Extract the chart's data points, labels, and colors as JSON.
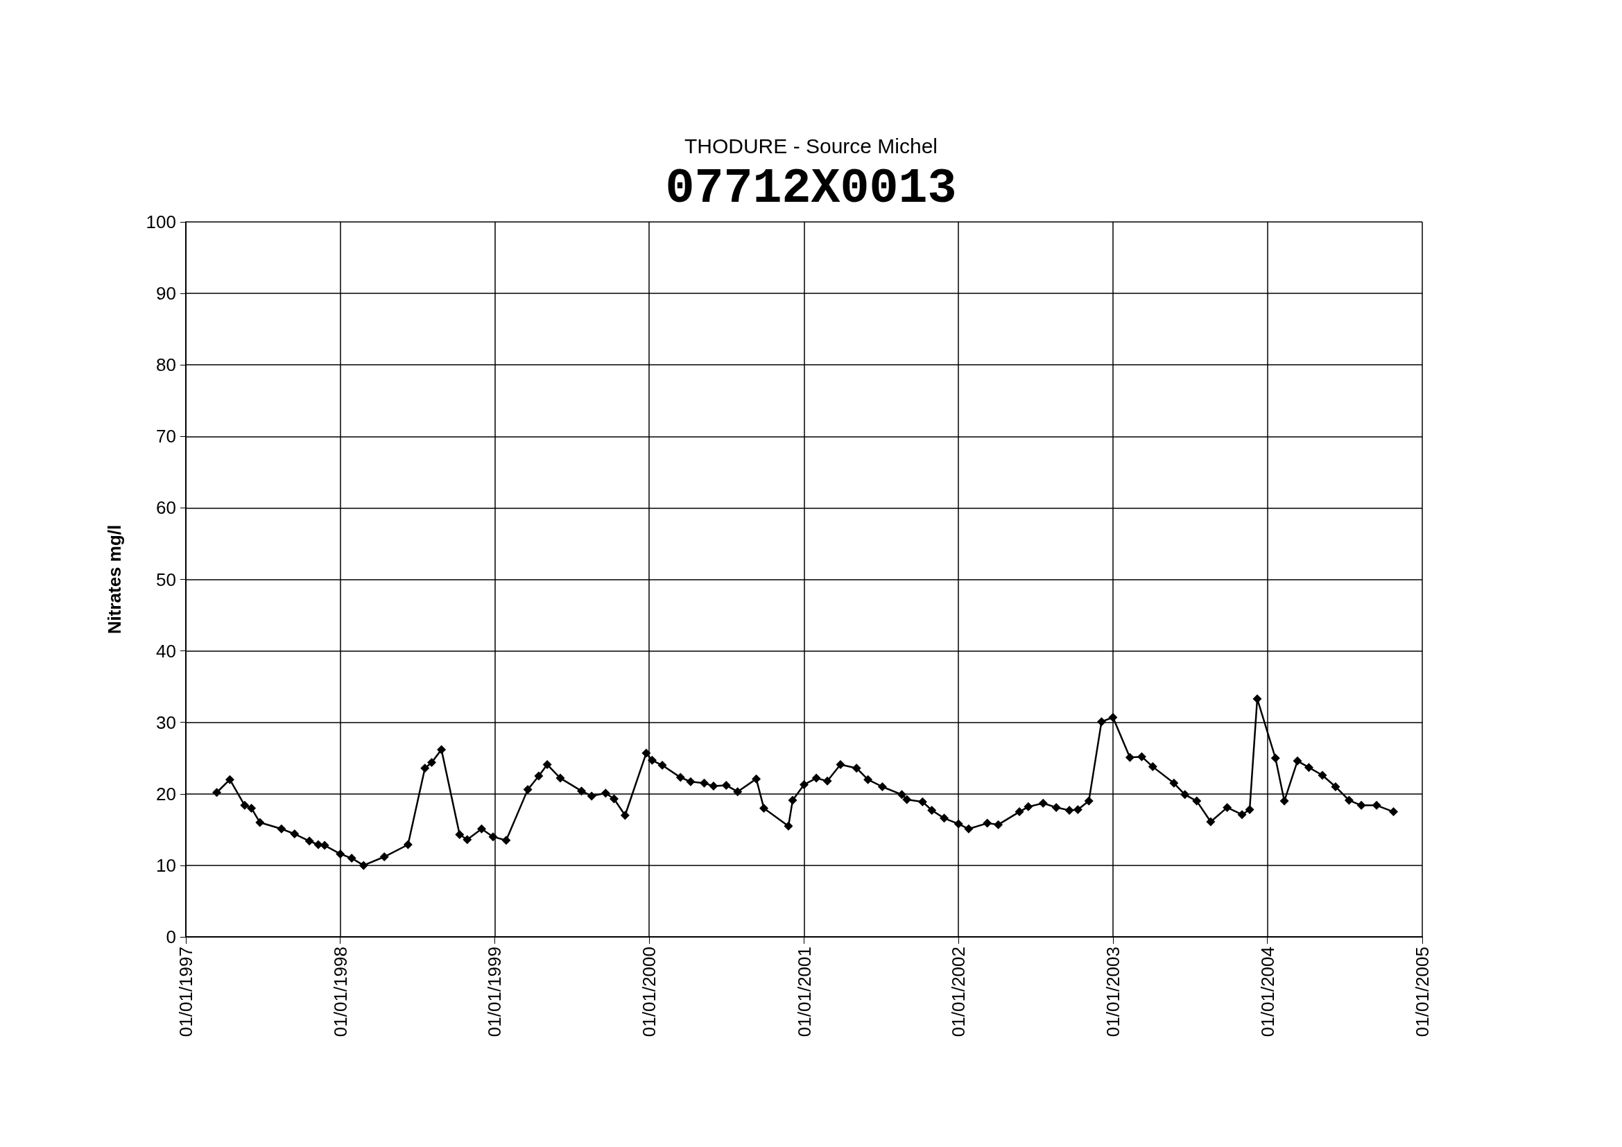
{
  "chart_data": {
    "type": "line",
    "title": "THODURE - Source Michel",
    "subtitle": "07712X0013",
    "ylabel": "Nitrates mg/l",
    "x": [
      "1997-03-15",
      "1997-04-15",
      "1997-05-20",
      "1997-06-05",
      "1997-06-25",
      "1997-08-15",
      "1997-09-15",
      "1997-10-20",
      "1997-11-10",
      "1997-11-25",
      "1998-01-01",
      "1998-01-28",
      "1998-02-25",
      "1998-04-15",
      "1998-06-10",
      "1998-07-20",
      "1998-08-05",
      "1998-08-28",
      "1998-10-10",
      "1998-10-28",
      "1998-12-01",
      "1998-12-28",
      "1999-01-28",
      "1999-03-20",
      "1999-04-15",
      "1999-05-05",
      "1999-06-05",
      "1999-07-25",
      "1999-08-18",
      "1999-09-20",
      "1999-10-10",
      "1999-11-05",
      "1999-12-25",
      "2000-01-08",
      "2000-02-01",
      "2000-03-15",
      "2000-04-08",
      "2000-05-10",
      "2000-06-01",
      "2000-07-01",
      "2000-07-28",
      "2000-09-10",
      "2000-09-28",
      "2000-11-25",
      "2000-12-05",
      "2001-01-01",
      "2001-01-30",
      "2001-02-25",
      "2001-03-28",
      "2001-05-05",
      "2001-06-01",
      "2001-07-05",
      "2001-08-20",
      "2001-09-01",
      "2001-10-08",
      "2001-10-30",
      "2001-11-28",
      "2002-01-01",
      "2002-01-25",
      "2002-03-10",
      "2002-04-05",
      "2002-05-25",
      "2002-06-15",
      "2002-07-20",
      "2002-08-20",
      "2002-09-20",
      "2002-10-10",
      "2002-11-05",
      "2002-12-05",
      "2003-01-01",
      "2003-02-10",
      "2003-03-10",
      "2003-04-05",
      "2003-05-25",
      "2003-06-20",
      "2003-07-18",
      "2003-08-20",
      "2003-09-28",
      "2003-11-02",
      "2003-11-20",
      "2003-12-08",
      "2004-01-20",
      "2004-02-10",
      "2004-03-12",
      "2004-04-08",
      "2004-05-10",
      "2004-06-10",
      "2004-07-12",
      "2004-08-10",
      "2004-09-15",
      "2004-10-25"
    ],
    "series": [
      {
        "color": "#000000",
        "values": [
          20.2,
          22,
          18.4,
          18,
          16,
          15.1,
          14.4,
          13.4,
          12.9,
          12.8,
          11.6,
          11,
          10,
          11.2,
          12.9,
          23.6,
          24.4,
          26.2,
          14.3,
          13.6,
          15.1,
          14,
          13.5,
          20.6,
          22.5,
          24.1,
          22.2,
          20.4,
          19.7,
          20.1,
          19.3,
          17,
          25.7,
          24.7,
          24,
          22.3,
          21.7,
          21.5,
          21.1,
          21.2,
          20.3,
          22.1,
          18,
          15.5,
          19.1,
          21.3,
          22.2,
          21.8,
          24.1,
          23.6,
          22,
          21,
          19.9,
          19.2,
          18.9,
          17.7,
          16.6,
          15.8,
          15.1,
          15.9,
          15.7,
          17.5,
          18.2,
          18.7,
          18.1,
          17.7,
          17.8,
          19,
          30.1,
          30.7,
          25.1,
          25.2,
          23.8,
          21.5,
          19.9,
          19,
          16.1,
          18.1,
          17.1,
          17.8,
          33.3,
          25,
          19,
          24.6,
          23.7,
          22.6,
          21,
          19.1,
          18.4,
          18.4,
          17.5
        ]
      }
    ],
    "xlim": [
      "1997-01-01",
      "2005-01-01"
    ],
    "xticks": [
      {
        "value": "1997-01-01",
        "label": "01/01/1997"
      },
      {
        "value": "1998-01-01",
        "label": "01/01/1998"
      },
      {
        "value": "1999-01-01",
        "label": "01/01/1999"
      },
      {
        "value": "2000-01-01",
        "label": "01/01/2000"
      },
      {
        "value": "2001-01-01",
        "label": "01/01/2001"
      },
      {
        "value": "2002-01-01",
        "label": "01/01/2002"
      },
      {
        "value": "2003-01-01",
        "label": "01/01/2003"
      },
      {
        "value": "2004-01-01",
        "label": "01/01/2004"
      },
      {
        "value": "2005-01-01",
        "label": "01/01/2005"
      }
    ],
    "ylim": [
      0,
      100
    ],
    "yticks": [
      0,
      10,
      20,
      30,
      40,
      50,
      60,
      70,
      80,
      90,
      100
    ],
    "grid": true,
    "marker": "diamond",
    "line_style": "solid"
  }
}
